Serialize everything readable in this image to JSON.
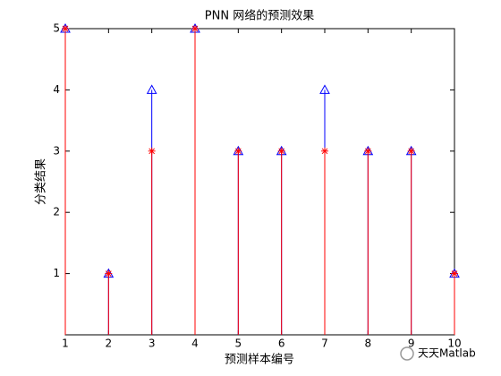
{
  "chart_data": {
    "type": "stem",
    "title": "PNN 网络的预测效果",
    "x_label": "预测样本编号",
    "y_label": "分类结果",
    "x": [
      1,
      2,
      3,
      4,
      5,
      6,
      7,
      8,
      9,
      10
    ],
    "series": [
      {
        "color": "#0000ff",
        "marker": "triangle",
        "values": [
          5,
          1,
          4,
          5,
          3,
          3,
          4,
          3,
          3,
          1
        ]
      },
      {
        "color": "#ff0000",
        "marker": "asterisk",
        "values": [
          5,
          1,
          3,
          5,
          3,
          3,
          3,
          3,
          3,
          1
        ]
      }
    ],
    "xlim": [
      1,
      10
    ],
    "xticks": [
      1,
      2,
      3,
      4,
      5,
      6,
      7,
      8,
      9,
      10
    ],
    "ylim": [
      0,
      5
    ],
    "yticks": [
      1,
      2,
      3,
      4,
      5
    ],
    "grid": false
  },
  "watermark": "天天Matlab"
}
